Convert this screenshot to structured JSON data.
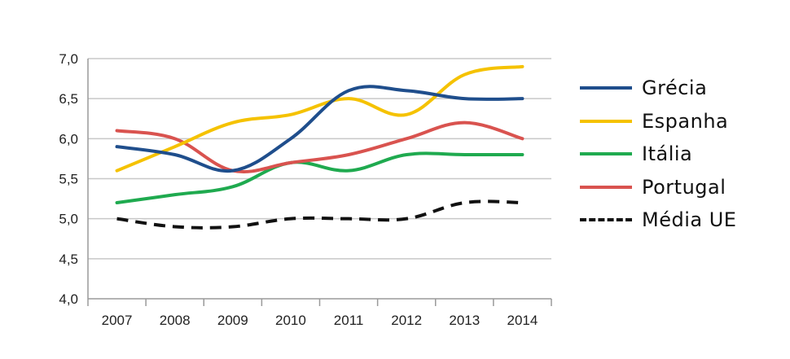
{
  "chart_data": {
    "type": "line",
    "title": "",
    "xlabel": "",
    "ylabel": "",
    "categories": [
      "2007",
      "2008",
      "2009",
      "2010",
      "2011",
      "2012",
      "2013",
      "2014"
    ],
    "ylim": [
      4.0,
      7.0
    ],
    "yticks": [
      "4,0",
      "4,5",
      "5,0",
      "5,5",
      "6,0",
      "6,5",
      "7,0"
    ],
    "ytick_values": [
      4.0,
      4.5,
      5.0,
      5.5,
      6.0,
      6.5,
      7.0
    ],
    "grid": "horizontal",
    "legend_position": "right",
    "series": [
      {
        "name": "Grécia",
        "color": "#1f4e8c",
        "style": "solid",
        "values": [
          5.9,
          5.8,
          5.6,
          6.0,
          6.6,
          6.6,
          6.5,
          6.5
        ]
      },
      {
        "name": "Espanha",
        "color": "#f5c200",
        "style": "solid",
        "values": [
          5.6,
          5.9,
          6.2,
          6.3,
          6.5,
          6.3,
          6.8,
          6.9
        ]
      },
      {
        "name": "Itália",
        "color": "#1faa4f",
        "style": "solid",
        "values": [
          5.2,
          5.3,
          5.4,
          5.7,
          5.6,
          5.8,
          5.8,
          5.8
        ]
      },
      {
        "name": "Portugal",
        "color": "#d9534f",
        "style": "solid",
        "values": [
          6.1,
          6.0,
          5.6,
          5.7,
          5.8,
          6.0,
          6.2,
          6.0
        ]
      },
      {
        "name": "Média UE",
        "color": "#111111",
        "style": "dashed",
        "values": [
          5.0,
          4.9,
          4.9,
          5.0,
          5.0,
          5.0,
          5.2,
          5.2
        ]
      }
    ]
  }
}
